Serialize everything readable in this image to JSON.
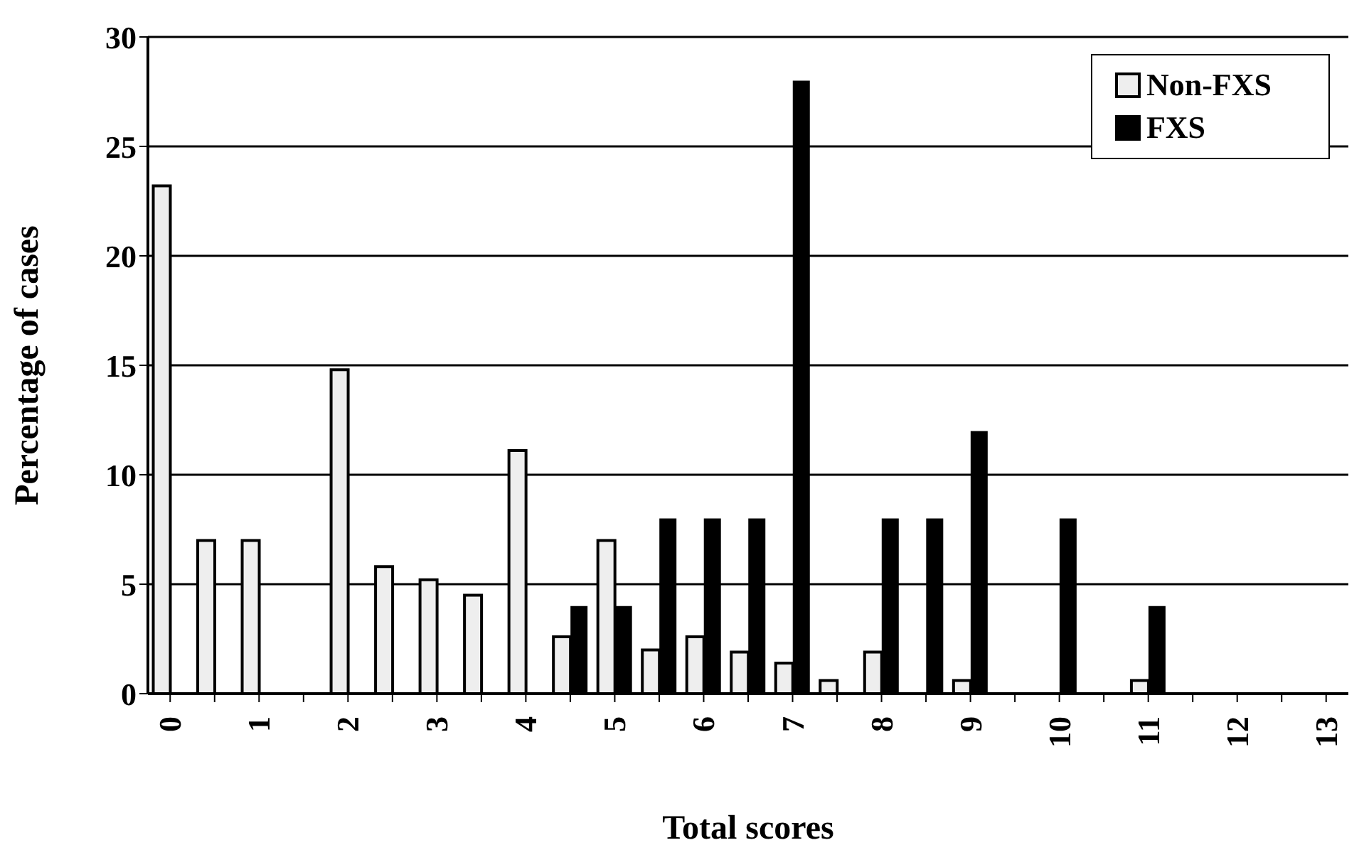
{
  "chart_data": {
    "type": "bar",
    "xlabel": "Total scores",
    "ylabel": "Percentage of cases",
    "categories": [
      "0",
      null,
      "1",
      null,
      "2",
      null,
      "3",
      null,
      "4",
      null,
      "5",
      null,
      "6",
      null,
      "7",
      null,
      "8",
      null,
      "9",
      null,
      "10",
      null,
      "11",
      null,
      "12",
      null,
      "13"
    ],
    "series": [
      {
        "name": "Non-FXS",
        "color": "#eeeeee",
        "values": [
          23.2,
          7,
          7,
          0,
          14.8,
          5.8,
          5.2,
          4.5,
          11.1,
          2.6,
          7,
          2,
          2.6,
          1.9,
          1.4,
          0.6,
          1.9,
          0,
          0.6,
          0,
          0,
          0,
          0.6,
          0,
          0,
          0,
          0
        ]
      },
      {
        "name": "FXS",
        "color": "#000000",
        "values": [
          0,
          0,
          0,
          0,
          0,
          0,
          0,
          0,
          0,
          4,
          4,
          8,
          8,
          8,
          28,
          0,
          8,
          8,
          12,
          0,
          8,
          0,
          4,
          0,
          0,
          0,
          0
        ]
      }
    ],
    "ylim": [
      0,
      30
    ],
    "yticks": [
      0,
      5,
      10,
      15,
      20,
      25,
      30
    ],
    "grid": "y",
    "legend": "top right"
  }
}
